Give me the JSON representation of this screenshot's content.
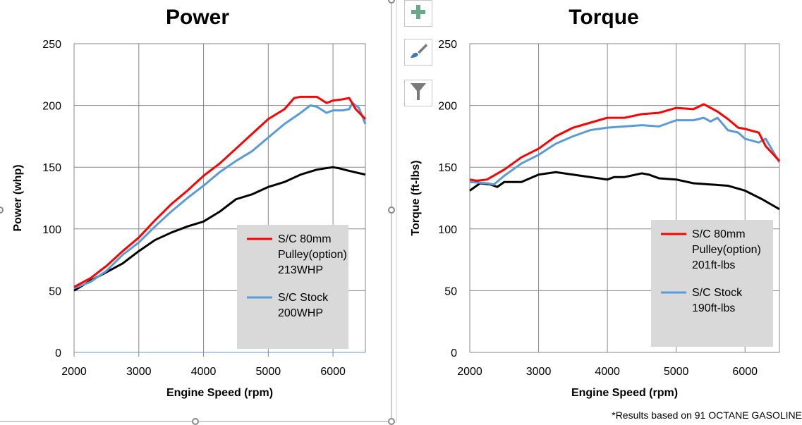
{
  "colors": {
    "pulley": "#ff0000",
    "stock": "#5b9bd5",
    "baseline": "#000000",
    "legend_bg": "#d9d9d9",
    "grid": "#878787"
  },
  "toolbar": [
    {
      "icon": "plus-icon",
      "label": "Chart Elements"
    },
    {
      "icon": "paintbrush-icon",
      "label": "Chart Styles"
    },
    {
      "icon": "filter-icon",
      "label": "Chart Filters"
    }
  ],
  "footnote": "*Results based on 91 OCTANE GASOLINE",
  "chart_data": [
    {
      "type": "line",
      "title": "Power",
      "xlabel": "Engine Speed (rpm)",
      "ylabel": "Power (whp)",
      "xlim": [
        2000,
        6500
      ],
      "ylim": [
        0,
        250
      ],
      "xticks": [
        2000,
        3000,
        4000,
        5000,
        6000
      ],
      "yticks": [
        0,
        50,
        100,
        150,
        200,
        250
      ],
      "grid": true,
      "legend": "bottom-right",
      "legend_entries": [
        [
          "S/C 80mm",
          "Pulley(option)",
          "213WHP"
        ],
        [
          "S/C Stock",
          "200WHP"
        ]
      ],
      "series": [
        {
          "key": "pulley",
          "x": [
            2000,
            2250,
            2500,
            2750,
            3000,
            3250,
            3500,
            3750,
            4000,
            4250,
            4500,
            4750,
            5000,
            5250,
            5400,
            5500,
            5750,
            5900,
            6000,
            6150,
            6250,
            6350,
            6500
          ],
          "y": [
            53,
            60,
            70,
            82,
            93,
            107,
            120,
            131,
            143,
            153,
            165,
            177,
            189,
            197,
            206,
            207,
            207,
            202,
            204,
            205,
            206,
            197,
            189
          ]
        },
        {
          "key": "stock",
          "x": [
            2000,
            2250,
            2500,
            2750,
            3000,
            3250,
            3500,
            3750,
            4000,
            4250,
            4500,
            4750,
            5000,
            5250,
            5500,
            5650,
            5750,
            5900,
            6000,
            6150,
            6250,
            6300,
            6400,
            6500
          ],
          "y": [
            52,
            57,
            66,
            79,
            89,
            102,
            114,
            125,
            135,
            146,
            155,
            163,
            174,
            185,
            194,
            200,
            199,
            194,
            196,
            196,
            197,
            202,
            198,
            185
          ]
        },
        {
          "key": "baseline",
          "x": [
            2000,
            2250,
            2500,
            2750,
            3000,
            3250,
            3500,
            3750,
            4000,
            4250,
            4500,
            4750,
            5000,
            5250,
            5500,
            5750,
            6000,
            6100,
            6250,
            6500
          ],
          "y": [
            50,
            58,
            65,
            72,
            82,
            91,
            97,
            102,
            106,
            114,
            124,
            128,
            134,
            138,
            144,
            148,
            150,
            149,
            147,
            144
          ]
        }
      ]
    },
    {
      "type": "line",
      "title": "Torque",
      "xlabel": "Engine Speed (rpm)",
      "ylabel": "Torque (ft-lbs)",
      "xlim": [
        2000,
        6500
      ],
      "ylim": [
        0,
        250
      ],
      "xticks": [
        2000,
        3000,
        4000,
        5000,
        6000
      ],
      "yticks": [
        0,
        50,
        100,
        150,
        200,
        250
      ],
      "grid": true,
      "legend": "bottom-right",
      "legend_entries": [
        [
          "S/C 80mm",
          "Pulley(option)",
          "201ft-lbs"
        ],
        [
          "S/C Stock",
          "190ft-lbs"
        ]
      ],
      "series": [
        {
          "key": "pulley",
          "x": [
            2000,
            2100,
            2250,
            2500,
            2750,
            3000,
            3250,
            3500,
            3750,
            4000,
            4250,
            4500,
            4750,
            5000,
            5250,
            5400,
            5600,
            5750,
            5900,
            6000,
            6200,
            6300,
            6500
          ],
          "y": [
            140,
            139,
            140,
            148,
            158,
            165,
            175,
            182,
            186,
            190,
            190,
            193,
            194,
            198,
            197,
            201,
            195,
            189,
            182,
            181,
            178,
            167,
            155
          ]
        },
        {
          "key": "stock",
          "x": [
            2000,
            2250,
            2350,
            2500,
            2750,
            3000,
            3250,
            3500,
            3750,
            4000,
            4250,
            4500,
            4750,
            5000,
            5250,
            5400,
            5500,
            5600,
            5750,
            5900,
            6000,
            6200,
            6300,
            6500
          ],
          "y": [
            138,
            137,
            136,
            143,
            153,
            160,
            169,
            175,
            180,
            182,
            183,
            184,
            183,
            188,
            188,
            190,
            187,
            190,
            180,
            178,
            173,
            170,
            173,
            154
          ]
        },
        {
          "key": "baseline",
          "x": [
            2000,
            2150,
            2300,
            2400,
            2500,
            2750,
            3000,
            3250,
            3500,
            3750,
            4000,
            4100,
            4250,
            4500,
            4600,
            4750,
            5000,
            5250,
            5500,
            5750,
            6000,
            6250,
            6500
          ],
          "y": [
            131,
            137,
            136,
            134,
            138,
            138,
            144,
            146,
            144,
            142,
            140,
            142,
            142,
            145,
            144,
            141,
            140,
            137,
            136,
            135,
            131,
            124,
            116
          ]
        }
      ]
    }
  ]
}
